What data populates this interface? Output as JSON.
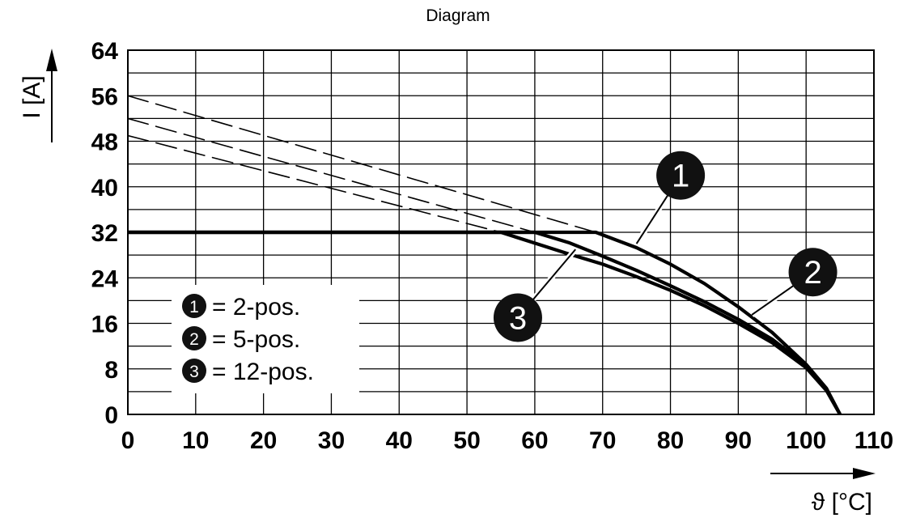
{
  "chart_data": {
    "type": "line",
    "title": "Diagram",
    "ylabel": "I [A]",
    "xlabel": "ϑ [°C]",
    "xlim": [
      0,
      110
    ],
    "ylim": [
      0,
      64
    ],
    "x_ticks": [
      0,
      10,
      20,
      30,
      40,
      50,
      60,
      70,
      80,
      90,
      100,
      110
    ],
    "y_ticks": [
      0,
      8,
      16,
      24,
      32,
      40,
      48,
      56,
      64
    ],
    "grid": true,
    "legend_position": "bottom-left",
    "legend": [
      {
        "marker": "1",
        "text": "= 2-pos."
      },
      {
        "marker": "2",
        "text": "= 5-pos."
      },
      {
        "marker": "3",
        "text": "= 12-pos."
      }
    ],
    "series": [
      {
        "marker": "1",
        "style": "solid",
        "x": [
          0,
          69,
          75,
          80,
          85,
          90,
          95,
          100,
          103,
          105
        ],
        "y": [
          32,
          32,
          29.3,
          26.4,
          23.0,
          18.9,
          14.4,
          8.8,
          4.6,
          0
        ]
      },
      {
        "marker": "2",
        "style": "solid",
        "x": [
          0,
          60,
          65,
          70,
          75,
          80,
          85,
          90,
          95,
          100,
          103,
          105
        ],
        "y": [
          32,
          32,
          30.2,
          27.8,
          25.3,
          22.6,
          19.8,
          16.7,
          13.2,
          8.6,
          4.5,
          0
        ]
      },
      {
        "marker": "3",
        "style": "solid",
        "x": [
          0,
          55,
          60,
          65,
          70,
          75,
          80,
          85,
          90,
          95,
          100,
          103,
          105
        ],
        "y": [
          32,
          32,
          30.1,
          28.2,
          26.4,
          24.2,
          21.8,
          19.1,
          16.0,
          12.6,
          8.2,
          4.2,
          0
        ]
      },
      {
        "marker": "1",
        "style": "dashed",
        "x": [
          0,
          69
        ],
        "y": [
          56,
          32
        ]
      },
      {
        "marker": "2",
        "style": "dashed",
        "x": [
          0,
          60
        ],
        "y": [
          52,
          32
        ]
      },
      {
        "marker": "3",
        "style": "dashed",
        "x": [
          0,
          55
        ],
        "y": [
          49,
          32
        ]
      }
    ],
    "markers": [
      {
        "label": "1",
        "x": 81.5,
        "y": 42,
        "leader_to": [
          75,
          30
        ]
      },
      {
        "label": "2",
        "x": 101,
        "y": 25,
        "leader_to": [
          92,
          17.5
        ]
      },
      {
        "label": "3",
        "x": 57.5,
        "y": 17,
        "leader_to": [
          66,
          29
        ]
      }
    ]
  }
}
